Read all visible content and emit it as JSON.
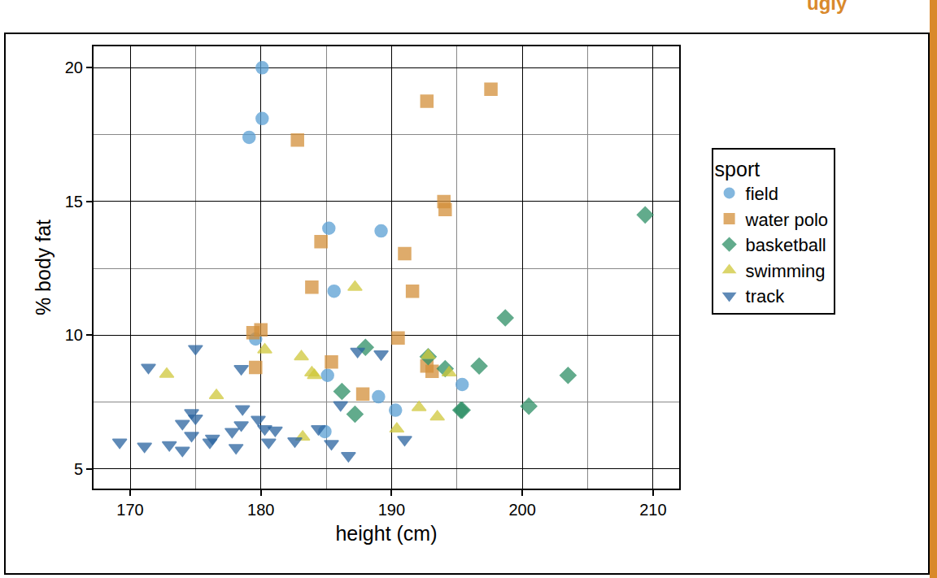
{
  "chart_data": {
    "type": "scatter",
    "annotations": [
      {
        "text": "ugly"
      }
    ],
    "x_label": "height (cm)",
    "y_label": "% body fat",
    "legend_title": "sport",
    "legend": "right",
    "grid": true,
    "xlim": [
      167.2,
      212
    ],
    "ylim": [
      4.27,
      20.8
    ],
    "xticks": [
      170,
      180,
      190,
      200,
      210
    ],
    "yticks": [
      5,
      10,
      15,
      20
    ],
    "series": [
      {
        "name": "field",
        "color": "#5a9fd4",
        "marker": "circle",
        "x": [
          180.1,
          180.1,
          179.1,
          185.2,
          189.2,
          185.6,
          179.6,
          185.1,
          189.0,
          190.3,
          195.4,
          184.9
        ],
        "values": [
          20.0,
          18.1,
          17.4,
          14.0,
          13.9,
          11.65,
          9.86,
          8.5,
          7.7,
          7.2,
          8.16,
          6.4
        ]
      },
      {
        "name": "water polo",
        "color": "#d4903a",
        "marker": "square",
        "x": [
          197.6,
          192.7,
          182.8,
          194.0,
          194.1,
          184.6,
          191.0,
          183.9,
          191.6,
          180.0,
          179.4,
          190.5,
          185.4,
          179.6,
          192.7,
          193.1,
          187.8
        ],
        "values": [
          19.2,
          18.75,
          17.3,
          15.0,
          14.7,
          13.5,
          13.05,
          11.8,
          11.65,
          10.2,
          10.1,
          9.9,
          9.0,
          8.8,
          8.85,
          8.65,
          7.8
        ]
      },
      {
        "name": "basketball",
        "color": "#2e8f66",
        "marker": "diamond",
        "x": [
          209.4,
          198.7,
          188.0,
          192.8,
          196.7,
          194.1,
          203.5,
          186.2,
          195.3,
          195.4,
          200.5,
          187.2
        ],
        "values": [
          14.5,
          10.65,
          9.55,
          9.2,
          8.85,
          8.75,
          8.5,
          7.9,
          7.2,
          7.2,
          7.35,
          7.05
        ]
      },
      {
        "name": "swimming",
        "color": "#cfc83a",
        "marker": "triangle-up",
        "x": [
          187.2,
          180.3,
          183.1,
          192.8,
          194.4,
          172.8,
          183.9,
          184.1,
          176.6,
          192.1,
          193.5,
          190.4,
          183.2
        ],
        "values": [
          11.8,
          9.46,
          9.2,
          9.25,
          8.6,
          8.55,
          8.6,
          8.5,
          7.75,
          7.3,
          6.95,
          6.5,
          6.2
        ]
      },
      {
        "name": "track",
        "color": "#2a64a0",
        "marker": "triangle-down",
        "x": [
          175.0,
          171.4,
          178.5,
          187.4,
          189.2,
          186.1,
          174.7,
          178.6,
          175.0,
          174.0,
          179.8,
          178.5,
          177.8,
          180.3,
          181.1,
          174.7,
          176.3,
          184.4,
          169.2,
          171.1,
          173.0,
          174.0,
          176.1,
          178.1,
          180.6,
          182.6,
          185.4,
          186.7,
          191.0
        ],
        "values": [
          9.5,
          8.8,
          8.75,
          9.4,
          9.3,
          7.4,
          7.1,
          7.25,
          6.9,
          6.7,
          6.85,
          6.65,
          6.4,
          6.5,
          6.45,
          6.25,
          6.15,
          6.5,
          6.0,
          5.85,
          5.9,
          5.7,
          6.0,
          5.8,
          6.0,
          6.05,
          5.95,
          5.5,
          6.1
        ]
      }
    ]
  }
}
